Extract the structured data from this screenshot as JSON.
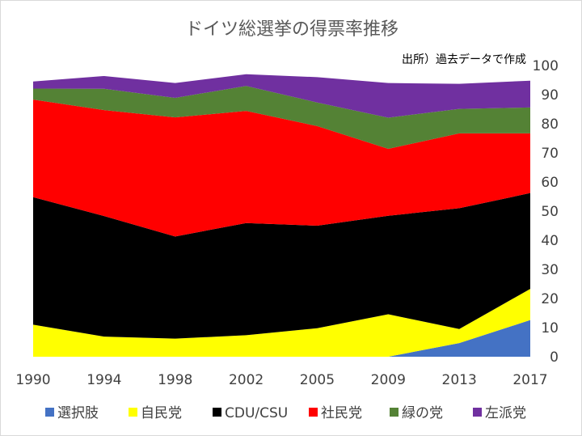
{
  "chart_data": {
    "type": "area",
    "stacked": true,
    "title": "ドイツ総選挙の得票率推移",
    "annotation": "出所）過去データで作成",
    "categories": [
      "1990",
      "1994",
      "1998",
      "2002",
      "2005",
      "2009",
      "2013",
      "2017"
    ],
    "series": [
      {
        "name": "選択肢",
        "color": "#4472C4",
        "values": [
          0,
          0,
          0,
          0,
          0,
          0,
          4.7,
          12.6
        ]
      },
      {
        "name": "自民党",
        "color": "#FFFF00",
        "values": [
          11.0,
          6.9,
          6.2,
          7.4,
          9.8,
          14.6,
          4.8,
          10.7
        ]
      },
      {
        "name": "CDU/CSU",
        "color": "#000000",
        "values": [
          43.8,
          41.4,
          35.1,
          38.5,
          35.2,
          33.8,
          41.5,
          32.9
        ]
      },
      {
        "name": "社民党",
        "color": "#FF0000",
        "values": [
          33.5,
          36.4,
          40.9,
          38.5,
          34.2,
          23.0,
          25.7,
          20.5
        ]
      },
      {
        "name": "緑の党",
        "color": "#548235",
        "values": [
          3.8,
          7.3,
          6.7,
          8.6,
          8.1,
          10.7,
          8.4,
          8.9
        ]
      },
      {
        "name": "左派党",
        "color": "#7030A0",
        "values": [
          2.4,
          4.4,
          5.1,
          4.0,
          8.7,
          11.9,
          8.6,
          9.2
        ]
      }
    ],
    "ylim": [
      0,
      100
    ],
    "yticks": [
      "0",
      "10",
      "20",
      "30",
      "40",
      "50",
      "60",
      "70",
      "80",
      "90",
      "100"
    ],
    "y_axis_position": "right",
    "grid": false,
    "legend_position": "bottom"
  }
}
